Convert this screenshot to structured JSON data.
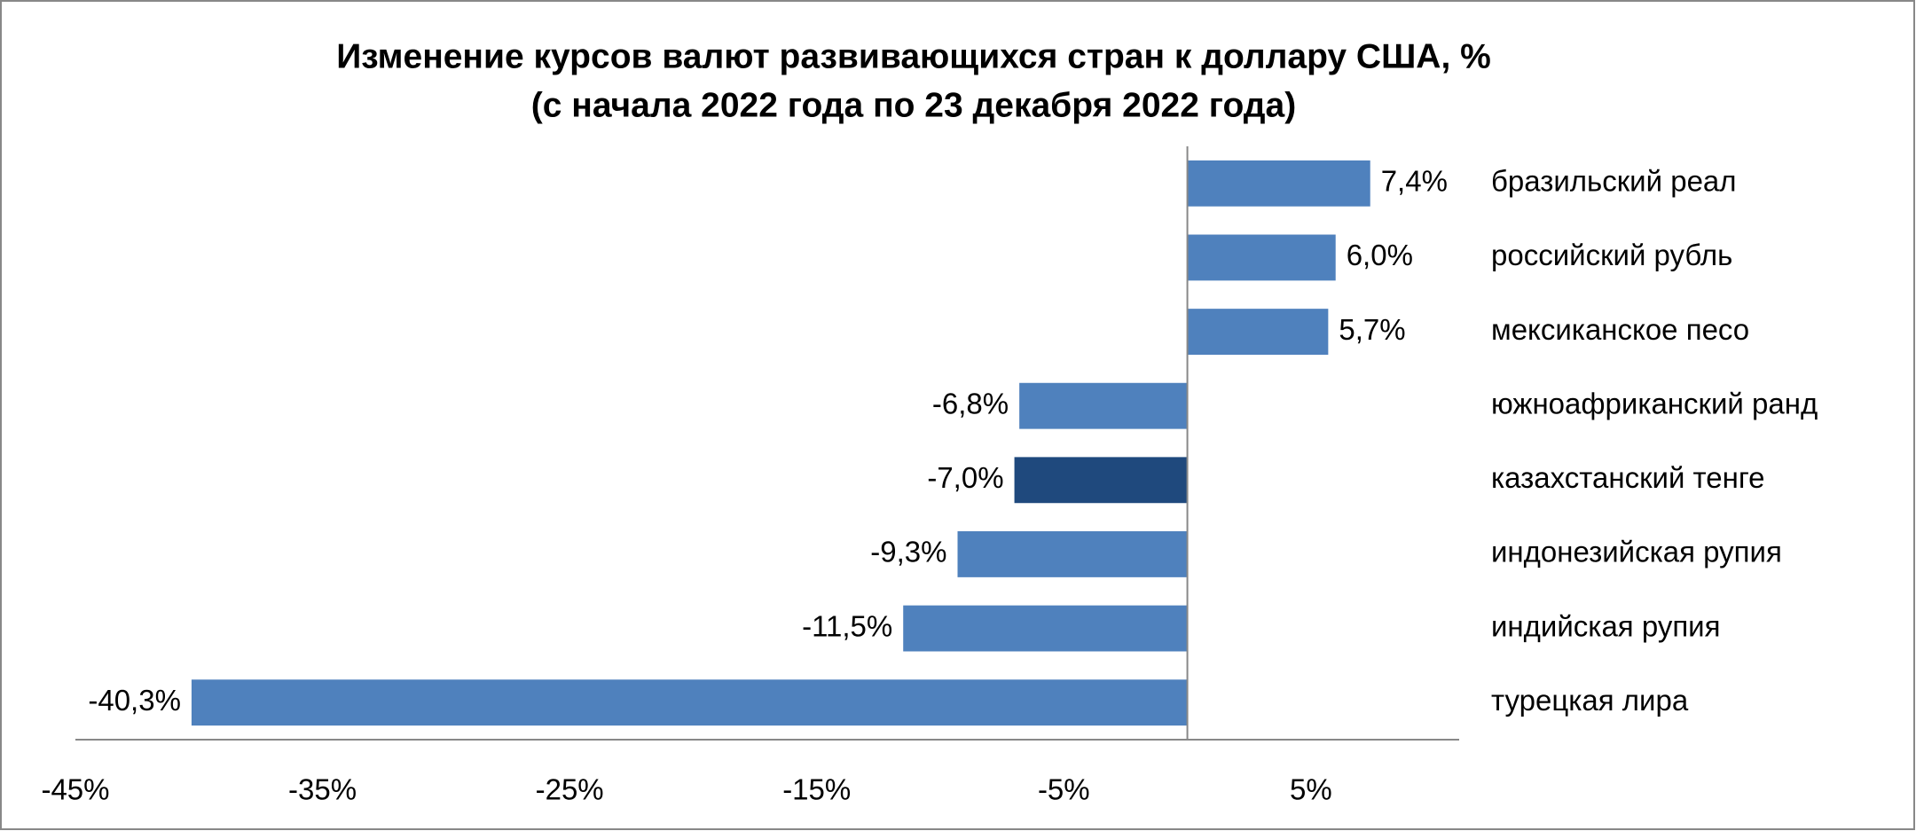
{
  "chart_data": {
    "type": "bar",
    "orientation": "horizontal",
    "title": "Изменение курсов валют развивающихся стран к доллару США, %",
    "subtitle": "(с начала 2022 года по 23 декабря 2022 года)",
    "categories": [
      "бразильский реал",
      "российский рубль",
      "мексиканское песо",
      "южноафриканский ранд",
      "казахстанский тенге",
      "индонезийская рупия",
      "индийская рупия",
      "турецкая лира"
    ],
    "values": [
      7.4,
      6.0,
      5.7,
      -6.8,
      -7.0,
      -9.3,
      -11.5,
      -40.3
    ],
    "value_labels": [
      "7,4%",
      "6,0%",
      "5,7%",
      "-6,8%",
      "-7,0%",
      "-9,3%",
      "-11,5%",
      "-40,3%"
    ],
    "colors": [
      "#4f81bd",
      "#4f81bd",
      "#4f81bd",
      "#4f81bd",
      "#1f497d",
      "#4f81bd",
      "#4f81bd",
      "#4f81bd"
    ],
    "xlim": [
      -45,
      11
    ],
    "xticks": [
      {
        "value": -45,
        "label": "-45%"
      },
      {
        "value": -35,
        "label": "-35%"
      },
      {
        "value": -25,
        "label": "-25%"
      },
      {
        "value": -15,
        "label": "-15%"
      },
      {
        "value": -5,
        "label": "-5%"
      },
      {
        "value": 5,
        "label": "5%"
      }
    ],
    "grid": false
  }
}
